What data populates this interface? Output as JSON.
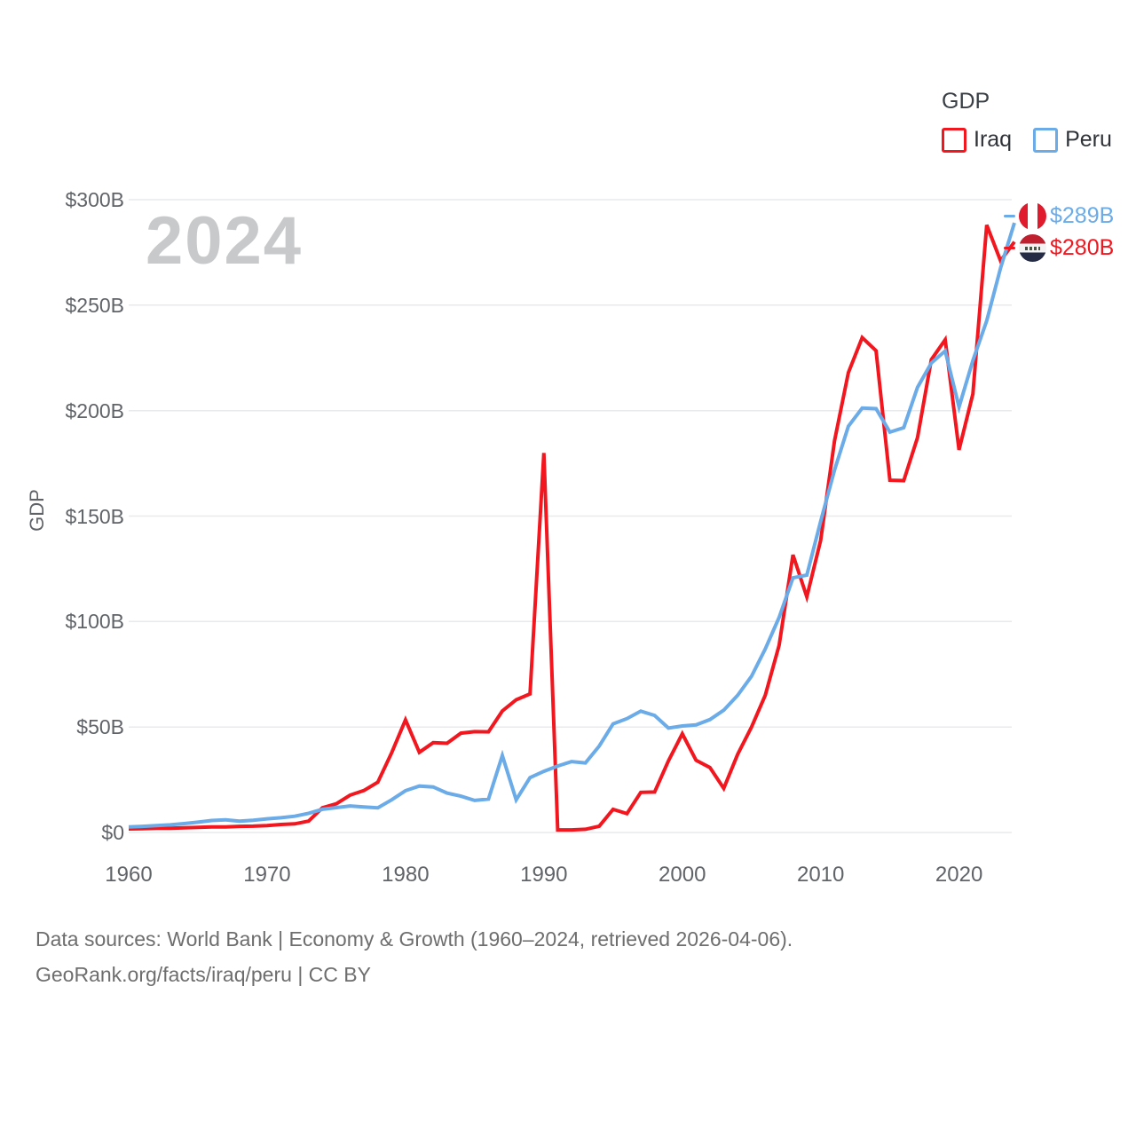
{
  "watermark": "2024",
  "legend": {
    "title": "GDP",
    "items": [
      {
        "label": "Iraq",
        "color": "#f2161f"
      },
      {
        "label": "Peru",
        "color": "#6aabe8"
      }
    ]
  },
  "end_labels": [
    {
      "series": "Peru",
      "text": "$289B",
      "flag": "peru-flag-icon",
      "color": "#6aabe8"
    },
    {
      "series": "Iraq",
      "text": "$280B",
      "flag": "iraq-flag-icon",
      "color": "#f2161f"
    }
  ],
  "footer": {
    "line1": "Data sources: World Bank | Economy & Growth (1960–2024, retrieved 2026-04-06).",
    "line2": "GeoRank.org/facts/iraq/peru | CC BY"
  },
  "chart_data": {
    "type": "line",
    "title": "GDP",
    "xlabel": "",
    "ylabel": "GDP",
    "xlim": [
      1960,
      2024
    ],
    "ylim": [
      0,
      300
    ],
    "grid": true,
    "legend_position": "top-right",
    "xtick_values": [
      1960,
      1970,
      1980,
      1990,
      2000,
      2010,
      2020
    ],
    "xtick_labels": [
      "1960",
      "1970",
      "1980",
      "1990",
      "2000",
      "2010",
      "2020"
    ],
    "ytick_values": [
      0,
      50,
      100,
      150,
      200,
      250,
      300
    ],
    "ytick_labels": [
      "$0",
      "$50B",
      "$100B",
      "$150B",
      "$200B",
      "$250B",
      "$300B"
    ],
    "x": [
      1960,
      1961,
      1962,
      1963,
      1964,
      1965,
      1966,
      1967,
      1968,
      1969,
      1970,
      1971,
      1972,
      1973,
      1974,
      1975,
      1976,
      1977,
      1978,
      1979,
      1980,
      1981,
      1982,
      1983,
      1984,
      1985,
      1986,
      1987,
      1988,
      1989,
      1990,
      1991,
      1992,
      1993,
      1994,
      1995,
      1996,
      1997,
      1998,
      1999,
      2000,
      2001,
      2002,
      2003,
      2004,
      2005,
      2006,
      2007,
      2008,
      2009,
      2010,
      2011,
      2012,
      2013,
      2014,
      2015,
      2016,
      2017,
      2018,
      2019,
      2020,
      2021,
      2022,
      2023,
      2024
    ],
    "series": [
      {
        "name": "Iraq",
        "color": "#f2161f",
        "unit": "billion USD",
        "values": [
          1.7,
          1.8,
          2.0,
          2.0,
          2.2,
          2.4,
          2.6,
          2.6,
          2.9,
          3.0,
          3.3,
          3.8,
          4.1,
          5.4,
          11.7,
          13.6,
          17.7,
          19.9,
          23.8,
          37.8,
          53.4,
          38.0,
          42.6,
          42.3,
          47.1,
          47.8,
          47.7,
          57.6,
          62.9,
          65.7,
          179.9,
          1.2,
          1.2,
          1.5,
          3.0,
          11.0,
          8.9,
          19.0,
          19.2,
          34.0,
          46.8,
          34.2,
          30.8,
          20.9,
          37.0,
          49.9,
          65.1,
          88.8,
          131.6,
          111.7,
          138.5,
          185.7,
          218.0,
          234.6,
          228.4,
          167.0,
          166.8,
          187.2,
          224.2,
          233.6,
          181.4,
          207.9,
          288.0,
          271.0,
          280.0
        ]
      },
      {
        "name": "Peru",
        "color": "#6aabe8",
        "unit": "billion USD",
        "values": [
          2.6,
          2.9,
          3.3,
          3.6,
          4.2,
          4.9,
          5.7,
          6.0,
          5.4,
          5.8,
          6.5,
          7.0,
          7.7,
          9.1,
          11.0,
          11.8,
          12.6,
          12.1,
          11.7,
          15.5,
          19.8,
          22.0,
          21.6,
          18.7,
          17.2,
          15.2,
          15.8,
          36.5,
          15.5,
          26.0,
          29.0,
          31.5,
          33.6,
          33.0,
          41.0,
          51.5,
          54.0,
          57.5,
          55.5,
          49.5,
          50.5,
          51.0,
          53.5,
          58.0,
          65.0,
          74.0,
          87.0,
          102.0,
          120.7,
          122.0,
          147.5,
          171.8,
          192.6,
          201.2,
          200.9,
          189.8,
          191.9,
          211.0,
          222.6,
          228.3,
          201.7,
          223.7,
          242.6,
          267.6,
          289.0
        ]
      }
    ]
  }
}
